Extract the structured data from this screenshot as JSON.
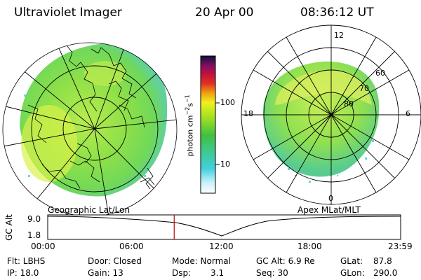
{
  "header": {
    "title": "Ultraviolet Imager",
    "date": "20 Apr 00",
    "time": "08:36:12 UT"
  },
  "colorbar": {
    "unit_label": "photon cm",
    "unit_sup1": "−2",
    "unit_mid": "s",
    "unit_sup2": "−1",
    "ticks": [
      "100",
      "10"
    ]
  },
  "left_map": {
    "caption": "Geographic Lat/Lon"
  },
  "right_map": {
    "caption": "Apex MLat/MLT",
    "mlt_labels": {
      "top": "12",
      "bottom": "0",
      "left": "18",
      "right": "6"
    },
    "lat_labels": [
      "60",
      "70",
      "80"
    ]
  },
  "timeline": {
    "ylabel": "GC Alt",
    "y_max": "9.0",
    "y_min": "1.8",
    "x_ticks": [
      "00:00",
      "06:00",
      "12:00",
      "18:00",
      "23:59"
    ],
    "current_hours": 8.6
  },
  "status": {
    "flt": "Flt: LBHS",
    "ip": "IP: 18.0",
    "door": "Door: Closed",
    "gain": "Gain: 13",
    "mode": "Mode: Normal",
    "dsp_label": "Dsp:",
    "dsp_value": "3.1",
    "gcalt": "GC Alt: 6.9 Re",
    "seq": "Seq: 30",
    "glat_label": "GLat:",
    "glat_value": "87.8",
    "glon_label": "GLon:",
    "glon_value": "290.0"
  },
  "colors": {
    "aurora_green": "#7fe040",
    "aurora_yellow": "#d8f24a",
    "aurora_cyan": "#4fd0e0"
  }
}
